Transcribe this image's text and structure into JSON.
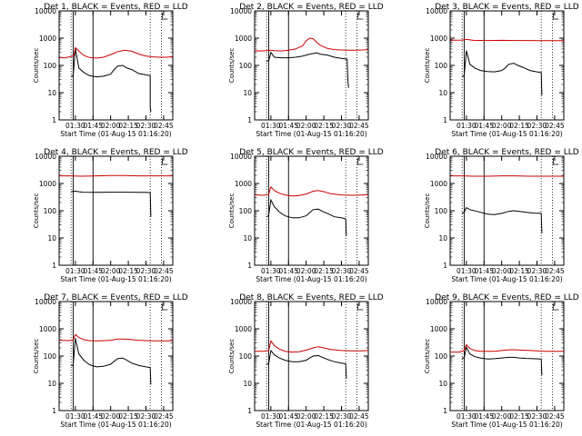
{
  "chart_data": [
    {
      "type": "line",
      "title": "Det 1, BLACK = Events, RED = LLD",
      "xlabel": "Start Time (01-Aug-15 01:16:20)",
      "ylabel": "Counts/sec",
      "x_ticks": [
        "01:30",
        "01:45",
        "02:00",
        "02:15",
        "02:30",
        "02:45"
      ],
      "y_ticks": [
        "1",
        "10",
        "100",
        "1000",
        "10000"
      ],
      "ylim": [
        1,
        10000
      ],
      "xlim_minutes": [
        1.27,
        2.88
      ],
      "y_scale": "log",
      "series": [
        {
          "name": "Events",
          "color": "#000000",
          "x": [
            1.44,
            1.46,
            1.47,
            1.5,
            1.55,
            1.62,
            1.7,
            1.8,
            1.9,
            2.0,
            2.05,
            2.1,
            2.17,
            2.23,
            2.3,
            2.4,
            2.5,
            2.56,
            2.56,
            2.57
          ],
          "y": [
            40,
            40,
            45,
            420,
            80,
            55,
            42,
            38,
            40,
            48,
            70,
            95,
            100,
            80,
            70,
            50,
            45,
            42,
            3,
            2
          ]
        },
        {
          "name": "LLD",
          "color": "#cc0000",
          "x": [
            1.27,
            1.35,
            1.44,
            1.48,
            1.5,
            1.55,
            1.62,
            1.7,
            1.8,
            1.9,
            2.0,
            2.1,
            2.2,
            2.3,
            2.4,
            2.5,
            2.6,
            2.7,
            2.8,
            2.88
          ],
          "y": [
            190,
            190,
            210,
            230,
            450,
            330,
            230,
            195,
            185,
            200,
            250,
            320,
            360,
            330,
            260,
            220,
            205,
            200,
            200,
            210
          ]
        }
      ]
    },
    {
      "type": "line",
      "title": "Det 2, BLACK = Events, RED = LLD",
      "xlabel": "Start Time (01-Aug-15 01:16:20)",
      "ylabel": "Counts/sec",
      "x_ticks": [
        "01:30",
        "01:45",
        "02:00",
        "02:15",
        "02:30",
        "02:45"
      ],
      "y_ticks": [
        "1",
        "10",
        "100",
        "1000",
        "10000"
      ],
      "ylim": [
        1,
        10000
      ],
      "xlim_minutes": [
        1.27,
        2.88
      ],
      "y_scale": "log",
      "series": [
        {
          "name": "Events",
          "color": "#000000",
          "x": [
            1.44,
            1.46,
            1.47,
            1.5,
            1.55,
            1.65,
            1.75,
            1.85,
            1.95,
            2.05,
            2.15,
            2.2,
            2.3,
            2.4,
            2.5,
            2.58,
            2.59,
            2.6
          ],
          "y": [
            140,
            150,
            150,
            300,
            200,
            190,
            190,
            200,
            220,
            260,
            290,
            260,
            240,
            200,
            180,
            170,
            30,
            15
          ]
        },
        {
          "name": "LLD",
          "color": "#cc0000",
          "x": [
            1.27,
            1.35,
            1.44,
            1.5,
            1.55,
            1.65,
            1.75,
            1.85,
            1.95,
            2.0,
            2.05,
            2.1,
            2.15,
            2.2,
            2.3,
            2.4,
            2.5,
            2.6,
            2.7,
            2.8,
            2.88
          ],
          "y": [
            350,
            340,
            350,
            360,
            350,
            340,
            360,
            400,
            520,
            800,
            1000,
            950,
            700,
            550,
            420,
            380,
            370,
            360,
            360,
            370,
            380
          ]
        }
      ]
    },
    {
      "type": "line",
      "title": "Det 3, BLACK = Events, RED = LLD",
      "xlabel": "Start Time (01-Aug-15 01:16:20)",
      "ylabel": "Counts/sec",
      "x_ticks": [
        "01:30",
        "01:45",
        "02:00",
        "02:15",
        "02:30",
        "02:45"
      ],
      "y_ticks": [
        "1",
        "10",
        "100",
        "1000",
        "10000"
      ],
      "ylim": [
        1,
        10000
      ],
      "xlim_minutes": [
        1.27,
        2.88
      ],
      "y_scale": "log",
      "series": [
        {
          "name": "Events",
          "color": "#000000",
          "x": [
            1.44,
            1.46,
            1.47,
            1.5,
            1.55,
            1.62,
            1.7,
            1.8,
            1.9,
            2.0,
            2.05,
            2.1,
            2.17,
            2.23,
            2.3,
            2.4,
            2.5,
            2.56,
            2.57
          ],
          "y": [
            40,
            40,
            45,
            350,
            110,
            80,
            65,
            60,
            58,
            65,
            80,
            110,
            120,
            100,
            85,
            65,
            58,
            55,
            8
          ]
        },
        {
          "name": "LLD",
          "color": "#cc0000",
          "x": [
            1.27,
            1.35,
            1.44,
            1.5,
            1.6,
            1.8,
            2.0,
            2.2,
            2.4,
            2.6,
            2.8,
            2.88
          ],
          "y": [
            850,
            840,
            850,
            900,
            830,
            820,
            830,
            820,
            820,
            810,
            810,
            820
          ]
        }
      ]
    },
    {
      "type": "line",
      "title": "Det 4, BLACK = Events, RED = LLD",
      "xlabel": "Start Time (01-Aug-15 01:16:20)",
      "ylabel": "Counts/sec",
      "x_ticks": [
        "01:30",
        "01:45",
        "02:00",
        "02:15",
        "02:30",
        "02:45"
      ],
      "y_ticks": [
        "1",
        "10",
        "100",
        "1000",
        "10000"
      ],
      "ylim": [
        1,
        10000
      ],
      "xlim_minutes": [
        1.27,
        2.88
      ],
      "y_scale": "log",
      "series": [
        {
          "name": "Events",
          "color": "#000000",
          "x": [
            1.44,
            1.5,
            1.6,
            1.8,
            2.0,
            2.2,
            2.4,
            2.5,
            2.56,
            2.57
          ],
          "y": [
            500,
            520,
            480,
            470,
            480,
            480,
            470,
            470,
            460,
            60
          ]
        },
        {
          "name": "LLD",
          "color": "#cc0000",
          "x": [
            1.27,
            1.4,
            1.6,
            1.8,
            2.0,
            2.2,
            2.4,
            2.6,
            2.8,
            2.88
          ],
          "y": [
            1900,
            1900,
            1850,
            1900,
            1950,
            1950,
            1900,
            1900,
            1900,
            1900
          ]
        }
      ]
    },
    {
      "type": "line",
      "title": "Det 5, BLACK = Events, RED = LLD",
      "xlabel": "Start Time (01-Aug-15 01:16:20)",
      "ylabel": "Counts/sec",
      "x_ticks": [
        "01:30",
        "01:45",
        "02:00",
        "02:15",
        "02:30",
        "02:45"
      ],
      "y_ticks": [
        "1",
        "10",
        "100",
        "1000",
        "10000"
      ],
      "ylim": [
        1,
        10000
      ],
      "xlim_minutes": [
        1.27,
        2.88
      ],
      "y_scale": "log",
      "series": [
        {
          "name": "Events",
          "color": "#000000",
          "x": [
            1.44,
            1.46,
            1.47,
            1.5,
            1.55,
            1.62,
            1.7,
            1.8,
            1.9,
            2.0,
            2.05,
            2.1,
            2.17,
            2.23,
            2.3,
            2.4,
            2.5,
            2.56,
            2.57
          ],
          "y": [
            60,
            65,
            70,
            250,
            140,
            90,
            65,
            55,
            55,
            65,
            85,
            110,
            115,
            95,
            80,
            60,
            55,
            50,
            12
          ]
        },
        {
          "name": "LLD",
          "color": "#cc0000",
          "x": [
            1.27,
            1.4,
            1.47,
            1.5,
            1.55,
            1.62,
            1.7,
            1.8,
            1.9,
            2.0,
            2.1,
            2.17,
            2.25,
            2.35,
            2.5,
            2.65,
            2.8,
            2.88
          ],
          "y": [
            380,
            370,
            400,
            750,
            550,
            440,
            380,
            350,
            360,
            410,
            520,
            550,
            500,
            420,
            380,
            370,
            380,
            390
          ]
        }
      ]
    },
    {
      "type": "line",
      "title": "Det 6, BLACK = Events, RED = LLD",
      "xlabel": "Start Time (01-Aug-15 01:16:20)",
      "ylabel": "Counts/sec",
      "x_ticks": [
        "01:30",
        "01:45",
        "02:00",
        "02:15",
        "02:30",
        "02:45"
      ],
      "y_ticks": [
        "1",
        "10",
        "100",
        "1000",
        "10000"
      ],
      "ylim": [
        1,
        10000
      ],
      "xlim_minutes": [
        1.27,
        2.88
      ],
      "y_scale": "log",
      "series": [
        {
          "name": "Events",
          "color": "#000000",
          "x": [
            1.44,
            1.47,
            1.5,
            1.55,
            1.65,
            1.8,
            1.9,
            2.0,
            2.1,
            2.17,
            2.25,
            2.35,
            2.45,
            2.56,
            2.57
          ],
          "y": [
            80,
            90,
            130,
            110,
            95,
            75,
            72,
            80,
            95,
            100,
            95,
            88,
            82,
            80,
            15
          ]
        },
        {
          "name": "LLD",
          "color": "#cc0000",
          "x": [
            1.27,
            1.4,
            1.6,
            1.8,
            2.0,
            2.2,
            2.4,
            2.6,
            2.8,
            2.88
          ],
          "y": [
            1900,
            1900,
            1850,
            1850,
            1900,
            1900,
            1850,
            1850,
            1850,
            1850
          ]
        }
      ]
    },
    {
      "type": "line",
      "title": "Det 7, BLACK = Events, RED = LLD",
      "xlabel": "Start Time (01-Aug-15 01:16:20)",
      "ylabel": "Counts/sec",
      "x_ticks": [
        "01:30",
        "01:45",
        "02:00",
        "02:15",
        "02:30",
        "02:45"
      ],
      "y_ticks": [
        "1",
        "10",
        "100",
        "1000",
        "10000"
      ],
      "ylim": [
        1,
        10000
      ],
      "xlim_minutes": [
        1.27,
        2.88
      ],
      "y_scale": "log",
      "series": [
        {
          "name": "Events",
          "color": "#000000",
          "x": [
            1.44,
            1.46,
            1.47,
            1.5,
            1.55,
            1.62,
            1.7,
            1.8,
            1.9,
            2.0,
            2.05,
            2.1,
            2.17,
            2.23,
            2.3,
            2.4,
            2.5,
            2.56,
            2.57
          ],
          "y": [
            45,
            45,
            50,
            450,
            120,
            70,
            48,
            40,
            42,
            50,
            65,
            80,
            85,
            70,
            55,
            45,
            40,
            38,
            9
          ]
        },
        {
          "name": "LLD",
          "color": "#cc0000",
          "x": [
            1.27,
            1.4,
            1.47,
            1.5,
            1.55,
            1.62,
            1.7,
            1.8,
            1.9,
            2.0,
            2.1,
            2.2,
            2.3,
            2.4,
            2.5,
            2.6,
            2.8,
            2.88
          ],
          "y": [
            380,
            370,
            390,
            620,
            480,
            400,
            370,
            360,
            370,
            380,
            420,
            420,
            400,
            380,
            370,
            360,
            360,
            370
          ]
        }
      ]
    },
    {
      "type": "line",
      "title": "Det 8, BLACK = Events, RED = LLD",
      "xlabel": "Start Time (01-Aug-15 01:16:20)",
      "ylabel": "Counts/sec",
      "x_ticks": [
        "01:30",
        "01:45",
        "02:00",
        "02:15",
        "02:30",
        "02:45"
      ],
      "y_ticks": [
        "1",
        "10",
        "100",
        "1000",
        "10000"
      ],
      "ylim": [
        1,
        10000
      ],
      "xlim_minutes": [
        1.27,
        2.88
      ],
      "y_scale": "log",
      "series": [
        {
          "name": "Events",
          "color": "#000000",
          "x": [
            1.44,
            1.46,
            1.47,
            1.5,
            1.55,
            1.62,
            1.7,
            1.8,
            1.9,
            2.0,
            2.05,
            2.1,
            2.17,
            2.23,
            2.3,
            2.4,
            2.5,
            2.56,
            2.57
          ],
          "y": [
            50,
            52,
            55,
            160,
            110,
            85,
            70,
            62,
            62,
            70,
            85,
            100,
            105,
            90,
            75,
            62,
            55,
            52,
            15
          ]
        },
        {
          "name": "LLD",
          "color": "#cc0000",
          "x": [
            1.27,
            1.4,
            1.47,
            1.5,
            1.55,
            1.62,
            1.7,
            1.8,
            1.9,
            2.0,
            2.1,
            2.17,
            2.25,
            2.35,
            2.5,
            2.65,
            2.8,
            2.88
          ],
          "y": [
            150,
            150,
            160,
            360,
            240,
            180,
            150,
            140,
            145,
            165,
            200,
            220,
            200,
            175,
            160,
            155,
            155,
            160
          ]
        }
      ]
    },
    {
      "type": "line",
      "title": "Det 9, BLACK = Events, RED = LLD",
      "xlabel": "Start Time (01-Aug-15 01:16:20)",
      "ylabel": "Counts/sec",
      "x_ticks": [
        "01:30",
        "01:45",
        "02:00",
        "02:15",
        "02:30",
        "02:45"
      ],
      "y_ticks": [
        "1",
        "10",
        "100",
        "1000",
        "10000"
      ],
      "ylim": [
        1,
        10000
      ],
      "xlim_minutes": [
        1.27,
        2.88
      ],
      "y_scale": "log",
      "series": [
        {
          "name": "Events",
          "color": "#000000",
          "x": [
            1.44,
            1.47,
            1.5,
            1.55,
            1.62,
            1.7,
            1.8,
            1.9,
            2.0,
            2.1,
            2.17,
            2.25,
            2.35,
            2.45,
            2.56,
            2.57
          ],
          "y": [
            80,
            90,
            210,
            120,
            95,
            85,
            78,
            80,
            85,
            90,
            90,
            85,
            82,
            80,
            78,
            20
          ]
        },
        {
          "name": "LLD",
          "color": "#cc0000",
          "x": [
            1.27,
            1.4,
            1.47,
            1.5,
            1.55,
            1.62,
            1.7,
            1.8,
            1.9,
            2.0,
            2.1,
            2.2,
            2.3,
            2.4,
            2.5,
            2.6,
            2.8,
            2.88
          ],
          "y": [
            140,
            140,
            160,
            260,
            190,
            160,
            150,
            150,
            150,
            160,
            170,
            170,
            165,
            160,
            155,
            150,
            150,
            150
          ]
        }
      ]
    }
  ]
}
